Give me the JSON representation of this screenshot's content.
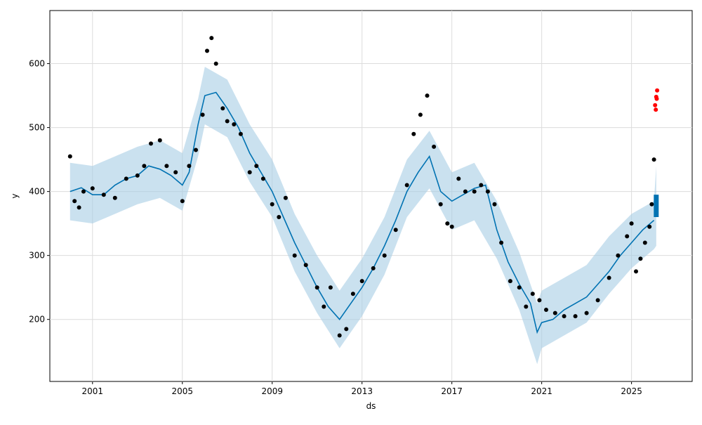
{
  "chart_data": {
    "type": "line",
    "title": "",
    "xlabel": "ds",
    "ylabel": "y",
    "xlim": [
      1999.1,
      2027.7
    ],
    "ylim": [
      103,
      683
    ],
    "grid": true,
    "x_ticks": [
      2001,
      2005,
      2009,
      2013,
      2017,
      2021,
      2025
    ],
    "x_tick_labels": [
      "2001",
      "2005",
      "2009",
      "2013",
      "2017",
      "2021",
      "2025"
    ],
    "y_ticks": [
      200,
      300,
      400,
      500,
      600
    ],
    "y_tick_labels": [
      "200",
      "300",
      "400",
      "500",
      "600"
    ],
    "colors": {
      "observed": "#000000",
      "forecast": "#0072B2",
      "uncertainty": "#a6cde4",
      "outlier": "#ff0000",
      "grid": "#dcdcdc"
    },
    "series": [
      {
        "kind": "forecast_line",
        "x": [
          2000.0,
          2000.5,
          2001.0,
          2001.5,
          2002.0,
          2002.5,
          2003.0,
          2003.5,
          2004.0,
          2004.5,
          2005.0,
          2005.3,
          2005.7,
          2006.0,
          2006.5,
          2007.0,
          2007.5,
          2008.0,
          2008.5,
          2009.0,
          2009.5,
          2010.0,
          2010.5,
          2011.0,
          2011.5,
          2012.0,
          2012.5,
          2013.0,
          2013.5,
          2014.0,
          2014.5,
          2015.0,
          2015.5,
          2016.0,
          2016.5,
          2017.0,
          2017.5,
          2018.0,
          2018.5,
          2019.0,
          2019.5,
          2020.0,
          2020.5,
          2020.8,
          2021.0,
          2021.5,
          2022.0,
          2022.5,
          2023.0,
          2023.5,
          2024.0,
          2024.5,
          2025.0,
          2025.5,
          2026.0
        ],
        "y": [
          400,
          406,
          395,
          395,
          410,
          420,
          425,
          440,
          435,
          425,
          410,
          430,
          505,
          550,
          555,
          530,
          500,
          460,
          430,
          400,
          360,
          320,
          285,
          250,
          220,
          200,
          225,
          250,
          280,
          315,
          355,
          400,
          430,
          455,
          400,
          385,
          395,
          405,
          410,
          340,
          290,
          255,
          225,
          180,
          195,
          200,
          215,
          225,
          235,
          255,
          275,
          300,
          320,
          340,
          355
        ]
      },
      {
        "kind": "uncertainty_upper",
        "x": [
          2000.0,
          2001.0,
          2002.0,
          2003.0,
          2004.0,
          2005.0,
          2005.7,
          2006.0,
          2007.0,
          2008.0,
          2009.0,
          2010.0,
          2011.0,
          2012.0,
          2013.0,
          2014.0,
          2015.0,
          2016.0,
          2017.0,
          2018.0,
          2019.0,
          2020.0,
          2020.8,
          2021.0,
          2022.0,
          2023.0,
          2024.0,
          2025.0,
          2026.0,
          2026.1
        ],
        "y": [
          445,
          440,
          455,
          470,
          480,
          460,
          545,
          595,
          575,
          505,
          450,
          365,
          300,
          245,
          295,
          360,
          450,
          495,
          430,
          445,
          385,
          305,
          225,
          245,
          265,
          285,
          330,
          365,
          385,
          440
        ]
      },
      {
        "kind": "uncertainty_lower",
        "x": [
          2000.0,
          2001.0,
          2002.0,
          2003.0,
          2004.0,
          2005.0,
          2005.7,
          2006.0,
          2007.0,
          2008.0,
          2009.0,
          2010.0,
          2011.0,
          2012.0,
          2013.0,
          2014.0,
          2015.0,
          2016.0,
          2017.0,
          2018.0,
          2019.0,
          2020.0,
          2020.8,
          2021.0,
          2022.0,
          2023.0,
          2024.0,
          2025.0,
          2026.0,
          2026.1
        ],
        "y": [
          355,
          350,
          365,
          380,
          390,
          370,
          455,
          505,
          485,
          415,
          360,
          275,
          210,
          155,
          205,
          270,
          360,
          405,
          340,
          355,
          295,
          215,
          130,
          155,
          175,
          195,
          240,
          280,
          310,
          315
        ]
      },
      {
        "kind": "observed_points",
        "x": [
          2000.0,
          2000.2,
          2000.4,
          2000.6,
          2001.0,
          2001.5,
          2002.0,
          2002.5,
          2003.0,
          2003.3,
          2003.6,
          2004.0,
          2004.3,
          2004.7,
          2005.0,
          2005.3,
          2005.6,
          2005.9,
          2006.1,
          2006.3,
          2006.5,
          2006.8,
          2007.0,
          2007.3,
          2007.6,
          2008.0,
          2008.3,
          2008.6,
          2009.0,
          2009.3,
          2009.6,
          2010.0,
          2010.5,
          2011.0,
          2011.3,
          2011.6,
          2012.0,
          2012.3,
          2012.6,
          2013.0,
          2013.5,
          2014.0,
          2014.5,
          2015.0,
          2015.3,
          2015.6,
          2015.9,
          2016.2,
          2016.5,
          2016.8,
          2017.0,
          2017.3,
          2017.6,
          2018.0,
          2018.3,
          2018.6,
          2018.9,
          2019.2,
          2019.6,
          2020.0,
          2020.3,
          2020.6,
          2020.9,
          2021.2,
          2021.6,
          2022.0,
          2022.5,
          2023.0,
          2023.5,
          2024.0,
          2024.4,
          2024.8,
          2025.0,
          2025.2,
          2025.4,
          2025.6,
          2025.8,
          2025.9,
          2026.0
        ],
        "y": [
          455,
          385,
          375,
          400,
          405,
          395,
          390,
          420,
          425,
          440,
          475,
          480,
          440,
          430,
          385,
          440,
          465,
          520,
          620,
          640,
          600,
          530,
          510,
          505,
          490,
          430,
          440,
          420,
          380,
          360,
          390,
          300,
          285,
          250,
          220,
          250,
          175,
          185,
          240,
          260,
          280,
          300,
          340,
          410,
          490,
          520,
          550,
          470,
          380,
          350,
          345,
          420,
          400,
          400,
          410,
          400,
          380,
          320,
          260,
          250,
          220,
          240,
          230,
          215,
          210,
          205,
          205,
          210,
          230,
          265,
          300,
          330,
          350,
          275,
          295,
          320,
          345,
          380,
          450
        ]
      },
      {
        "kind": "outlier_points",
        "x": [
          2026.05,
          2026.08,
          2026.1,
          2026.12,
          2026.14
        ],
        "y": [
          535,
          528,
          548,
          545,
          558
        ]
      },
      {
        "kind": "future_forecast_bar",
        "x": [
          2026.1,
          2026.1
        ],
        "y": [
          360,
          395
        ]
      }
    ]
  }
}
